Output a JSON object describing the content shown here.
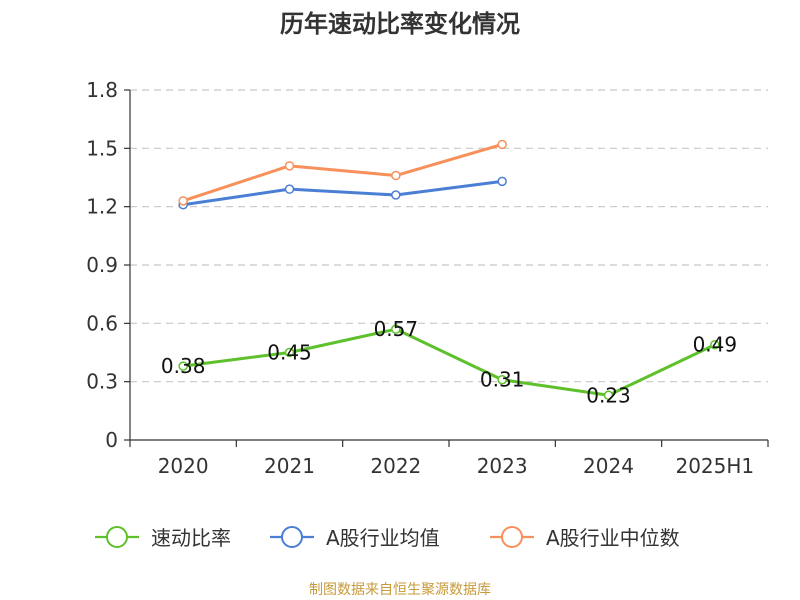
{
  "chart_data": {
    "type": "line",
    "title": "历年速动比率变化情况",
    "categories": [
      "2020",
      "2021",
      "2022",
      "2023",
      "2024",
      "2025H1"
    ],
    "ylim": [
      0,
      1.8
    ],
    "yticks": [
      "0",
      "0.3",
      "0.6",
      "0.9",
      "1.2",
      "1.5",
      "1.8"
    ],
    "grid": true,
    "legend_position": "bottom",
    "series": [
      {
        "name": "速动比率",
        "color": "#5ec12c",
        "values": [
          0.38,
          0.45,
          0.57,
          0.31,
          0.23,
          0.49
        ],
        "labels": [
          "0.38",
          "0.45",
          "0.57",
          "0.31",
          "0.23",
          "0.49"
        ],
        "show_labels": true
      },
      {
        "name": "A股行业均值",
        "color": "#4b7fd6",
        "values": [
          1.21,
          1.29,
          1.26,
          1.33,
          null,
          null
        ],
        "show_labels": false
      },
      {
        "name": "A股行业中位数",
        "color": "#f7905a",
        "values": [
          1.23,
          1.41,
          1.36,
          1.52,
          null,
          null
        ],
        "show_labels": false
      }
    ]
  },
  "source_text": "制图数据来自恒生聚源数据库"
}
